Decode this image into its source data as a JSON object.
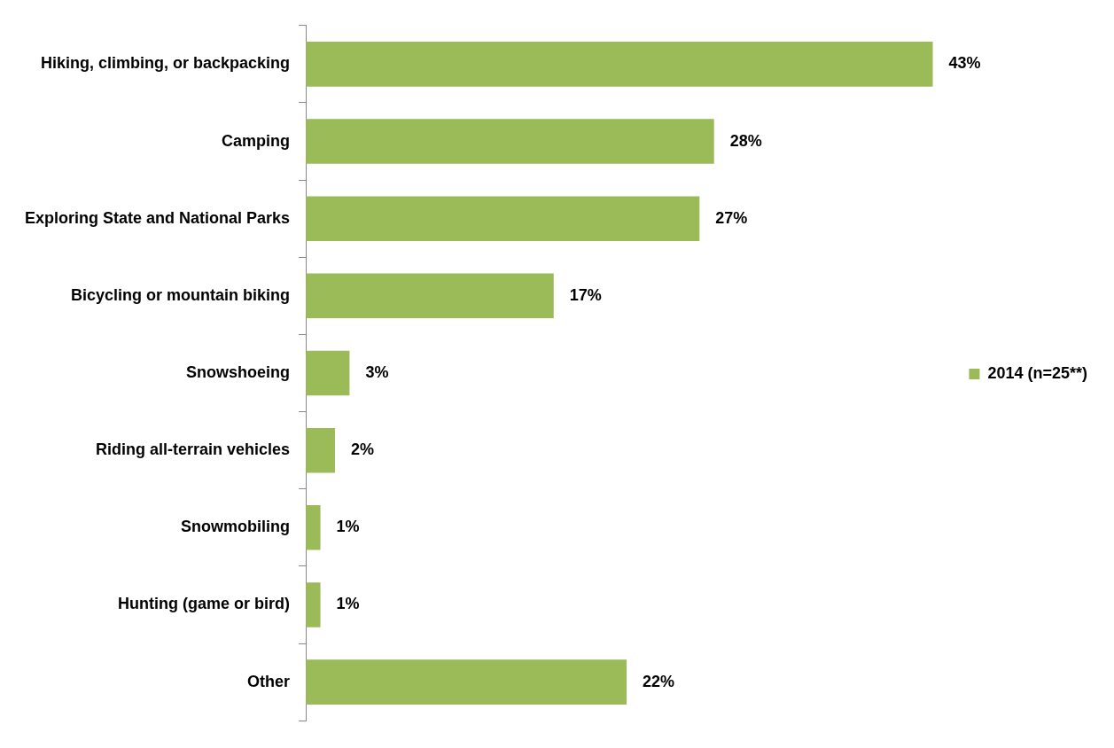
{
  "chart_data": {
    "type": "bar",
    "orientation": "horizontal",
    "categories": [
      "Hiking, climbing, or backpacking",
      "Camping",
      "Exploring State and National Parks",
      "Bicycling or mountain biking",
      "Snowshoeing",
      "Riding all-terrain vehicles",
      "Snowmobiling",
      "Hunting (game or bird)",
      "Other"
    ],
    "series": [
      {
        "name": "2014 (n=25**)",
        "color": "#9bbb59",
        "values": [
          43,
          28,
          27,
          17,
          3,
          2,
          1,
          1,
          22
        ],
        "value_labels": [
          "43%",
          "28%",
          "27%",
          "17%",
          "3%",
          "2%",
          "1%",
          "1%",
          "22%"
        ]
      }
    ],
    "legend": "right"
  }
}
